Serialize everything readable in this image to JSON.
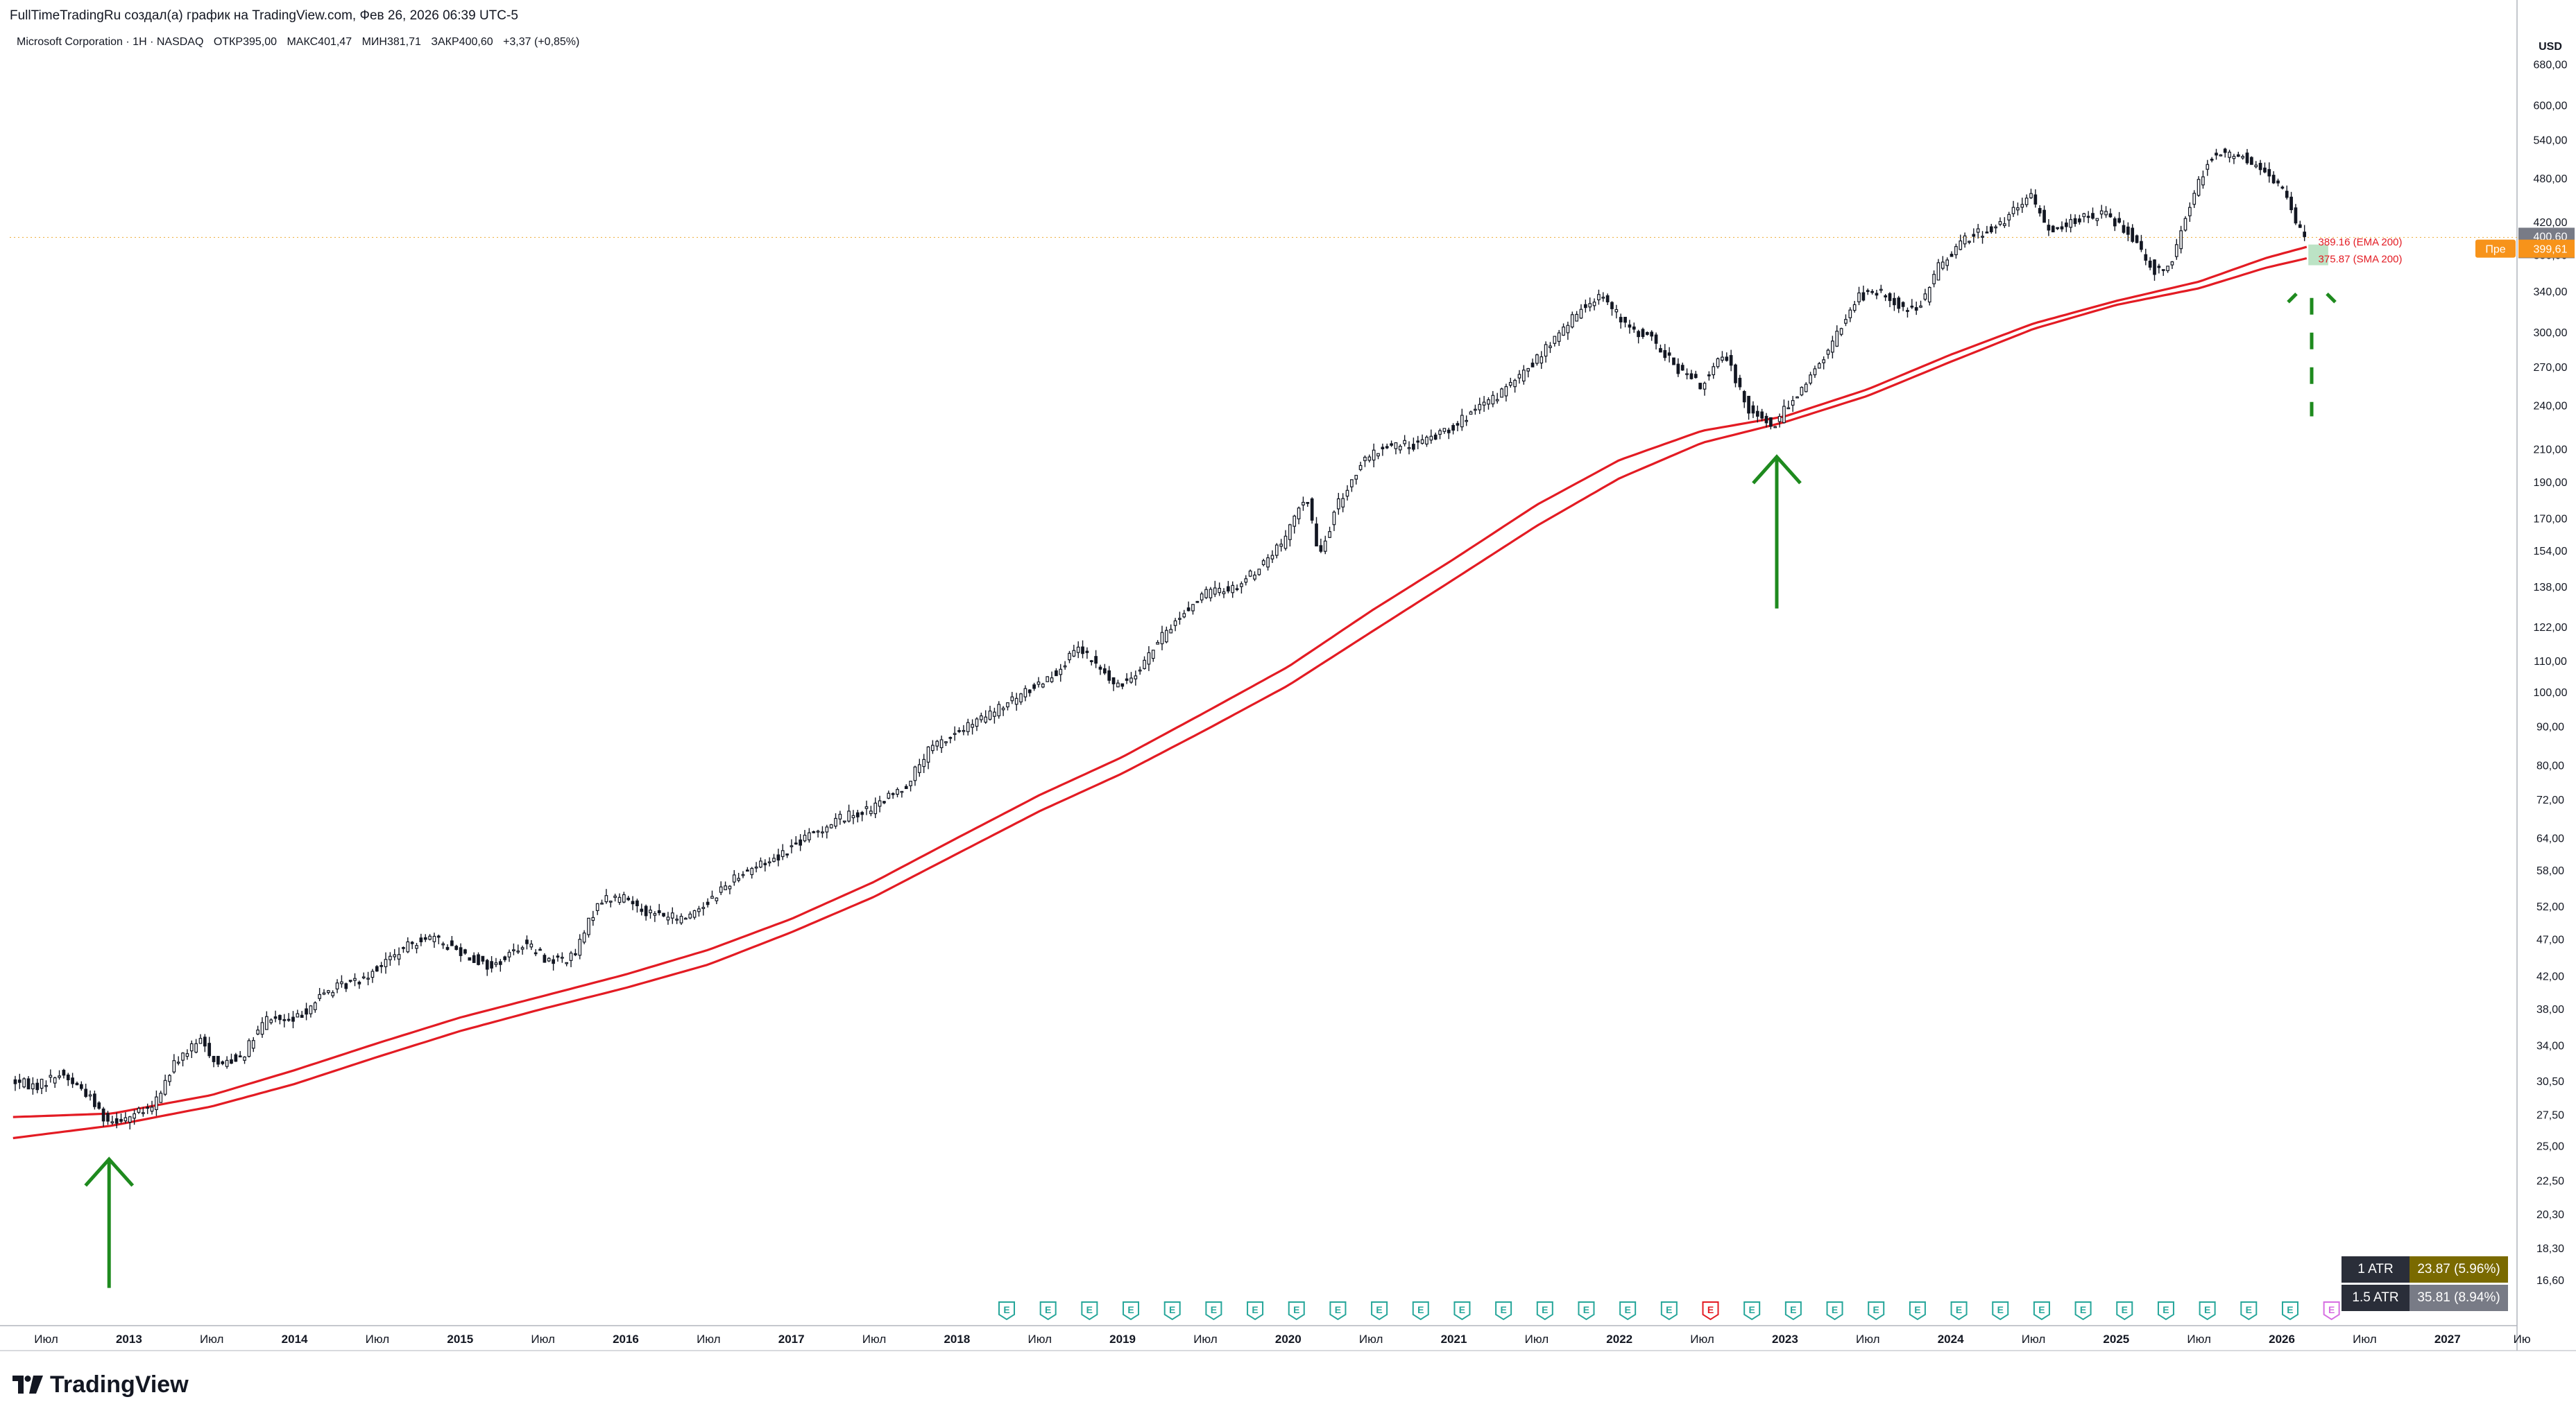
{
  "header": {
    "credit": "FullTimeTradingRu создал(а) график на TradingView.com, Фев 26, 2026 06:39 UTC-5"
  },
  "symbol": {
    "name": "Microsoft Corporation · 1Н · NASDAQ",
    "open": "ОТКР395,00",
    "high": "МАКС401,47",
    "low": "МИН381,71",
    "close": "ЗАКР400,60",
    "change": "+3,37 (+0,85%)"
  },
  "brand": {
    "name": "TradingView"
  },
  "atr": [
    {
      "label": "1 ATR",
      "value": "23.87 (5.96%)",
      "color": "#7a6a00"
    },
    {
      "label": "1.5 ATR",
      "value": "35.81 (8.94%)",
      "color": "#787b86"
    }
  ],
  "chart_data": {
    "type": "candlestick-line",
    "title": "Microsoft Corporation · 1Н · NASDAQ",
    "y_unit": "USD",
    "y_scale": "log",
    "ylim": [
      14.5,
      760
    ],
    "xlim": [
      2012.28,
      2027.42
    ],
    "y_ticks": [
      "680,00",
      "600,00",
      "540,00",
      "480,00",
      "420,00",
      "380,00",
      "340,00",
      "300,00",
      "270,00",
      "240,00",
      "210,00",
      "190,00",
      "170,00",
      "154,00",
      "138,00",
      "122,00",
      "110,00",
      "100,00",
      "90,00",
      "80,00",
      "72,00",
      "64,00",
      "58,00",
      "52,00",
      "47,00",
      "42,00",
      "38,00",
      "34,00",
      "30,50",
      "27,50",
      "25,00",
      "22,50",
      "20,30",
      "18,30",
      "16,60"
    ],
    "x_ticks": [
      {
        "label": "Июл",
        "t": 2012.5
      },
      {
        "label": "2013",
        "t": 2013.0
      },
      {
        "label": "Июл",
        "t": 2013.5
      },
      {
        "label": "2014",
        "t": 2014.0
      },
      {
        "label": "Июл",
        "t": 2014.5
      },
      {
        "label": "2015",
        "t": 2015.0
      },
      {
        "label": "Июл",
        "t": 2015.5
      },
      {
        "label": "2016",
        "t": 2016.0
      },
      {
        "label": "Июл",
        "t": 2016.5
      },
      {
        "label": "2017",
        "t": 2017.0
      },
      {
        "label": "Июл",
        "t": 2017.5
      },
      {
        "label": "2018",
        "t": 2018.0
      },
      {
        "label": "Июл",
        "t": 2018.5
      },
      {
        "label": "2019",
        "t": 2019.0
      },
      {
        "label": "Июл",
        "t": 2019.5
      },
      {
        "label": "2020",
        "t": 2020.0
      },
      {
        "label": "Июл",
        "t": 2020.5
      },
      {
        "label": "2021",
        "t": 2021.0
      },
      {
        "label": "Июл",
        "t": 2021.5
      },
      {
        "label": "2022",
        "t": 2022.0
      },
      {
        "label": "Июл",
        "t": 2022.5
      },
      {
        "label": "2023",
        "t": 2023.0
      },
      {
        "label": "Июл",
        "t": 2023.5
      },
      {
        "label": "2024",
        "t": 2024.0
      },
      {
        "label": "Июл",
        "t": 2024.5
      },
      {
        "label": "2025",
        "t": 2025.0
      },
      {
        "label": "Июл",
        "t": 2025.5
      },
      {
        "label": "2026",
        "t": 2026.0
      },
      {
        "label": "Июл",
        "t": 2026.5
      },
      {
        "label": "2027",
        "t": 2027.0
      },
      {
        "label": "Ию",
        "t": 2027.45
      }
    ],
    "price_path": [
      [
        2012.3,
        30.5
      ],
      [
        2012.45,
        30.0
      ],
      [
        2012.6,
        31.2
      ],
      [
        2012.75,
        29.5
      ],
      [
        2012.88,
        27.0
      ],
      [
        2013.0,
        27.3
      ],
      [
        2013.15,
        28.0
      ],
      [
        2013.3,
        32.5
      ],
      [
        2013.45,
        34.5
      ],
      [
        2013.55,
        32.0
      ],
      [
        2013.7,
        33.0
      ],
      [
        2013.85,
        37.0
      ],
      [
        2014.0,
        36.5
      ],
      [
        2014.2,
        40.0
      ],
      [
        2014.4,
        41.5
      ],
      [
        2014.6,
        44.5
      ],
      [
        2014.8,
        47.5
      ],
      [
        2015.0,
        45.5
      ],
      [
        2015.2,
        43.0
      ],
      [
        2015.4,
        46.5
      ],
      [
        2015.55,
        44.0
      ],
      [
        2015.7,
        44.5
      ],
      [
        2015.85,
        53.0
      ],
      [
        2016.0,
        53.5
      ],
      [
        2016.15,
        51.0
      ],
      [
        2016.35,
        50.0
      ],
      [
        2016.5,
        52.5
      ],
      [
        2016.7,
        57.5
      ],
      [
        2016.9,
        60.0
      ],
      [
        2017.1,
        64.0
      ],
      [
        2017.3,
        68.0
      ],
      [
        2017.5,
        70.0
      ],
      [
        2017.7,
        75.0
      ],
      [
        2017.85,
        84.0
      ],
      [
        2018.0,
        88.0
      ],
      [
        2018.2,
        93.0
      ],
      [
        2018.4,
        99.0
      ],
      [
        2018.6,
        106.0
      ],
      [
        2018.75,
        114.0
      ],
      [
        2018.9,
        106.0
      ],
      [
        2018.98,
        101.0
      ],
      [
        2019.1,
        107.0
      ],
      [
        2019.3,
        122.0
      ],
      [
        2019.5,
        135.0
      ],
      [
        2019.7,
        138.0
      ],
      [
        2019.85,
        147.0
      ],
      [
        2020.0,
        160.0
      ],
      [
        2020.12,
        184.0
      ],
      [
        2020.2,
        150.0
      ],
      [
        2020.3,
        175.0
      ],
      [
        2020.45,
        200.0
      ],
      [
        2020.6,
        212.0
      ],
      [
        2020.8,
        213.0
      ],
      [
        2021.0,
        225.0
      ],
      [
        2021.2,
        240.0
      ],
      [
        2021.4,
        260.0
      ],
      [
        2021.6,
        290.0
      ],
      [
        2021.8,
        325.0
      ],
      [
        2021.9,
        338.0
      ],
      [
        2022.05,
        305.0
      ],
      [
        2022.2,
        295.0
      ],
      [
        2022.35,
        270.0
      ],
      [
        2022.5,
        255.0
      ],
      [
        2022.65,
        280.0
      ],
      [
        2022.8,
        236.0
      ],
      [
        2022.95,
        225.0
      ],
      [
        2023.05,
        245.0
      ],
      [
        2023.15,
        258.0
      ],
      [
        2023.3,
        290.0
      ],
      [
        2023.45,
        335.0
      ],
      [
        2023.6,
        338.0
      ],
      [
        2023.75,
        320.0
      ],
      [
        2023.85,
        330.0
      ],
      [
        2023.95,
        370.0
      ],
      [
        2024.1,
        400.0
      ],
      [
        2024.3,
        415.0
      ],
      [
        2024.5,
        455.0
      ],
      [
        2024.6,
        410.0
      ],
      [
        2024.8,
        425.0
      ],
      [
        2024.95,
        430.0
      ],
      [
        2025.1,
        405.0
      ],
      [
        2025.25,
        360.0
      ],
      [
        2025.35,
        375.0
      ],
      [
        2025.5,
        470.0
      ],
      [
        2025.6,
        520.0
      ],
      [
        2025.75,
        515.0
      ],
      [
        2025.85,
        500.0
      ],
      [
        2025.95,
        480.0
      ],
      [
        2026.05,
        455.0
      ],
      [
        2026.1,
        420.0
      ],
      [
        2026.15,
        400.6
      ]
    ],
    "series": [
      {
        "name": "EMA 200",
        "color": "#e31b23",
        "last_label": "389.16 (EMA 200)",
        "values": [
          [
            2012.3,
            27.3
          ],
          [
            2012.9,
            27.6
          ],
          [
            2013.5,
            29.2
          ],
          [
            2014.0,
            31.5
          ],
          [
            2014.5,
            34.2
          ],
          [
            2015.0,
            37.0
          ],
          [
            2015.5,
            39.5
          ],
          [
            2016.0,
            42.2
          ],
          [
            2016.5,
            45.5
          ],
          [
            2017.0,
            50.0
          ],
          [
            2017.5,
            56.0
          ],
          [
            2018.0,
            64.0
          ],
          [
            2018.5,
            73.0
          ],
          [
            2019.0,
            82.0
          ],
          [
            2019.5,
            94.0
          ],
          [
            2020.0,
            108.0
          ],
          [
            2020.5,
            128.0
          ],
          [
            2021.0,
            150.0
          ],
          [
            2021.5,
            177.0
          ],
          [
            2022.0,
            203.0
          ],
          [
            2022.5,
            222.0
          ],
          [
            2023.0,
            232.0
          ],
          [
            2023.5,
            252.0
          ],
          [
            2024.0,
            280.0
          ],
          [
            2024.5,
            308.0
          ],
          [
            2025.0,
            330.0
          ],
          [
            2025.5,
            350.0
          ],
          [
            2025.9,
            376.0
          ],
          [
            2026.15,
            389.16
          ]
        ]
      },
      {
        "name": "SMA 200",
        "color": "#e31b23",
        "last_label": "375.87 (SMA 200)",
        "values": [
          [
            2012.3,
            25.6
          ],
          [
            2012.9,
            26.6
          ],
          [
            2013.5,
            28.2
          ],
          [
            2014.0,
            30.2
          ],
          [
            2014.5,
            32.8
          ],
          [
            2015.0,
            35.5
          ],
          [
            2015.5,
            38.0
          ],
          [
            2016.0,
            40.5
          ],
          [
            2016.5,
            43.5
          ],
          [
            2017.0,
            48.0
          ],
          [
            2017.5,
            53.5
          ],
          [
            2018.0,
            61.0
          ],
          [
            2018.5,
            69.5
          ],
          [
            2019.0,
            78.0
          ],
          [
            2019.5,
            89.0
          ],
          [
            2020.0,
            102.0
          ],
          [
            2020.5,
            120.0
          ],
          [
            2021.0,
            141.0
          ],
          [
            2021.5,
            166.0
          ],
          [
            2022.0,
            192.0
          ],
          [
            2022.5,
            214.0
          ],
          [
            2023.0,
            228.0
          ],
          [
            2023.5,
            247.0
          ],
          [
            2024.0,
            274.0
          ],
          [
            2024.5,
            303.0
          ],
          [
            2025.0,
            326.0
          ],
          [
            2025.5,
            343.0
          ],
          [
            2025.9,
            365.0
          ],
          [
            2026.15,
            375.87
          ]
        ]
      }
    ],
    "price_label": "400,60",
    "countdown_label": "1d 10h",
    "premarket_tag": "Пре",
    "premarket_value": "399,61",
    "earnings_marker": "E",
    "earnings_dates": [
      2018.3,
      2018.55,
      2018.8,
      2019.05,
      2019.3,
      2019.55,
      2019.8,
      2020.05,
      2020.3,
      2020.55,
      2020.8,
      2021.05,
      2021.3,
      2021.55,
      2021.8,
      2022.05,
      2022.3,
      2022.55,
      2022.8,
      2023.05,
      2023.3,
      2023.55,
      2023.8,
      2024.05,
      2024.3,
      2024.55,
      2024.8,
      2025.05,
      2025.3,
      2025.55,
      2025.8,
      2026.05,
      2026.3
    ],
    "earnings_miss": [
      2022.55
    ],
    "earnings_future": [
      2026.3
    ],
    "grid": false,
    "legend": "right-axis"
  }
}
